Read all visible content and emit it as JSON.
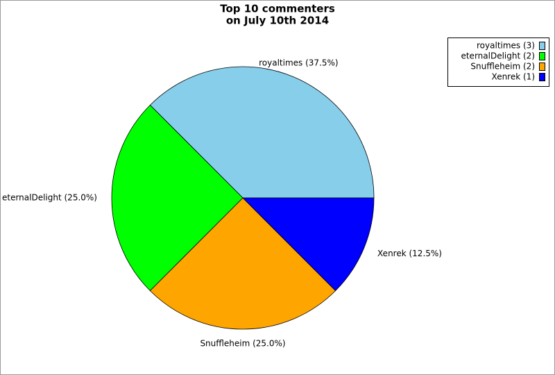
{
  "chart_data": {
    "type": "pie",
    "title": [
      "Top 10 commenters",
      "on July 10th 2014"
    ],
    "values": [
      37.5,
      25.0,
      25.0,
      12.5
    ],
    "value_labels": [
      "royaltimes (37.5%)",
      "eternalDelight (25.0%)",
      "Snuffleheim (25.0%)",
      "Xenrek (12.5%)"
    ],
    "legend": [
      "royaltimes (3)",
      "eternalDelight (2)",
      "Snuffleheim (2)",
      "Xenrek (1)"
    ],
    "colors": [
      "#87ceeb",
      "#00ff00",
      "#ffa500",
      "#0000ff"
    ],
    "legend_position": "top-right"
  }
}
